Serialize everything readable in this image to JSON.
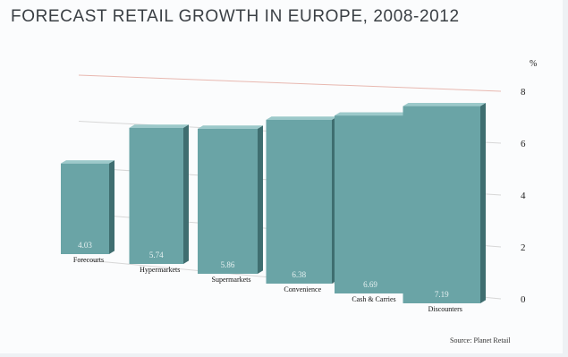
{
  "chart_data": {
    "type": "bar",
    "title": "FORECAST RETAIL GROWTH IN EUROPE, 2008-2012",
    "ylabel": "%",
    "ylim": [
      0,
      8
    ],
    "yticks": [
      "0",
      "2",
      "4",
      "6",
      "8"
    ],
    "grid": true,
    "categories": [
      "Forecourts",
      "Hypermarkets",
      "Supermarkets",
      "Convenience",
      "Cash & Carries",
      "Discounters"
    ],
    "values": [
      4.03,
      5.74,
      5.86,
      6.38,
      6.69,
      7.19
    ],
    "data_labels": [
      "4.03",
      "5.74",
      "5.86",
      "6.38",
      "6.69",
      "7.19"
    ],
    "source": "Source: Planet Retail",
    "bar_color": "#6aa4a6"
  }
}
